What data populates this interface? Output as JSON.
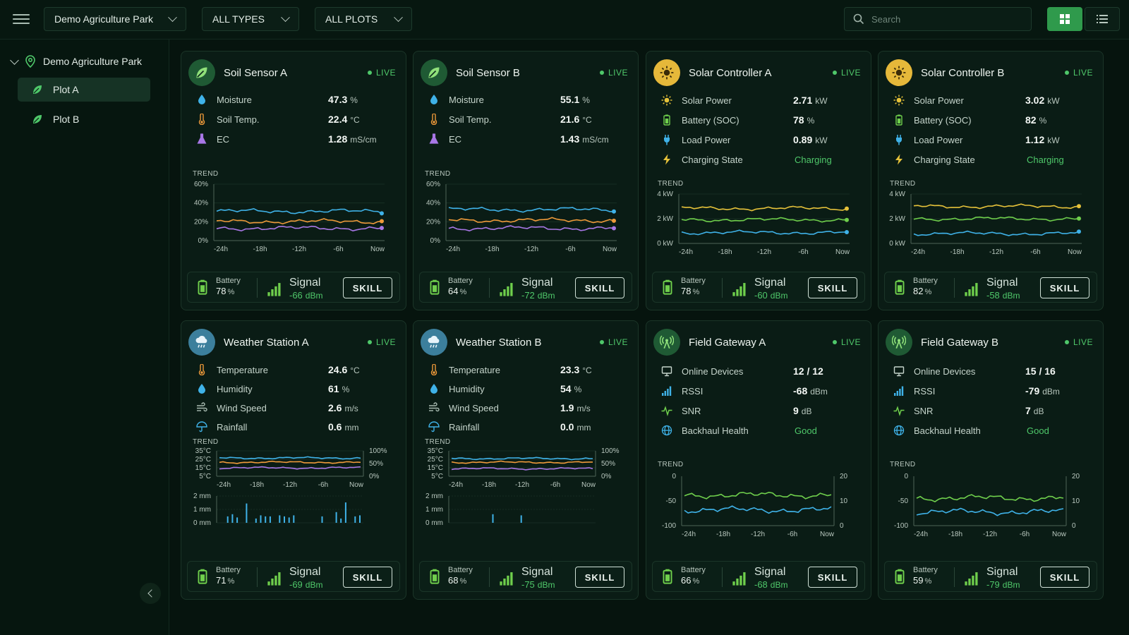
{
  "header": {
    "park_select": "Demo Agriculture Park",
    "type_select": "ALL TYPES",
    "plot_select": "ALL PLOTS",
    "search_placeholder": "Search"
  },
  "sidebar": {
    "root": "Demo Agriculture Park",
    "items": [
      {
        "label": "Plot A",
        "active": true
      },
      {
        "label": "Plot B",
        "active": false
      }
    ]
  },
  "common": {
    "live": "LIVE",
    "trend": "TREND",
    "battery": "Battery",
    "signal": "Signal",
    "skill": "SKILL",
    "time_ticks": [
      "-24h",
      "-18h",
      "-12h",
      "-6h",
      "Now"
    ]
  },
  "colors": {
    "blue": "#3fb2e8",
    "orange": "#ef9a3a",
    "purple": "#a877e6",
    "yellow": "#e6c23a",
    "green": "#6fcf4c",
    "accent": "#2f9a4c",
    "good": "#4fc86a"
  },
  "cards": [
    {
      "kind": "soil",
      "icon": "leaf-icon",
      "title": "Soil Sensor A",
      "metrics": [
        {
          "label": "Moisture",
          "icon": "droplet-icon",
          "value": "47.3",
          "unit": "%"
        },
        {
          "label": "Soil Temp.",
          "icon": "thermometer-icon",
          "value": "22.4",
          "unit": "°C"
        },
        {
          "label": "EC",
          "icon": "flask-icon",
          "value": "1.28",
          "unit": "mS/cm"
        }
      ],
      "y_ticks": [
        "60%",
        "40%",
        "20%",
        "0%"
      ],
      "series": [
        {
          "name": "Moisture",
          "color": "#3fb2e8",
          "level": 0.52
        },
        {
          "name": "Soil Temp.",
          "color": "#ef9a3a",
          "level": 0.34
        },
        {
          "name": "EC",
          "color": "#a877e6",
          "level": 0.22
        }
      ],
      "battery": "78",
      "signal": "-66"
    },
    {
      "kind": "soil",
      "icon": "leaf-icon",
      "title": "Soil Sensor B",
      "metrics": [
        {
          "label": "Moisture",
          "icon": "droplet-icon",
          "value": "55.1",
          "unit": "%"
        },
        {
          "label": "Soil Temp.",
          "icon": "thermometer-icon",
          "value": "21.6",
          "unit": "°C"
        },
        {
          "label": "EC",
          "icon": "flask-icon",
          "value": "1.43",
          "unit": "mS/cm"
        }
      ],
      "y_ticks": [
        "60%",
        "40%",
        "20%",
        "0%"
      ],
      "series": [
        {
          "name": "Moisture",
          "color": "#3fb2e8",
          "level": 0.55
        },
        {
          "name": "Soil Temp.",
          "color": "#ef9a3a",
          "level": 0.36
        },
        {
          "name": "EC",
          "color": "#a877e6",
          "level": 0.22
        }
      ],
      "battery": "64",
      "signal": "-72"
    },
    {
      "kind": "solar",
      "icon": "sun-icon",
      "title": "Solar Controller A",
      "metrics": [
        {
          "label": "Solar Power",
          "icon": "sun-icon",
          "value": "2.71",
          "unit": "kW"
        },
        {
          "label": "Battery (SOC)",
          "icon": "battery-icon",
          "value": "78",
          "unit": "%"
        },
        {
          "label": "Load Power",
          "icon": "plug-icon",
          "value": "0.89",
          "unit": "kW"
        },
        {
          "label": "Charging State",
          "icon": "bolt-icon",
          "value": "Charging",
          "unit": "",
          "good": true
        }
      ],
      "y_ticks": [
        "4 kW",
        "2 kW",
        "0 kW"
      ],
      "series": [
        {
          "name": "Solar Power",
          "color": "#e6c23a",
          "level": 0.71
        },
        {
          "name": "Battery (SOC)",
          "color": "#6fcf4c",
          "level": 0.48
        },
        {
          "name": "Load Power",
          "color": "#3fb2e8",
          "level": 0.22
        }
      ],
      "battery": "78",
      "signal": "-60"
    },
    {
      "kind": "solar",
      "icon": "sun-icon",
      "title": "Solar Controller B",
      "metrics": [
        {
          "label": "Solar Power",
          "icon": "sun-icon",
          "value": "3.02",
          "unit": "kW"
        },
        {
          "label": "Battery (SOC)",
          "icon": "battery-icon",
          "value": "82",
          "unit": "%"
        },
        {
          "label": "Load Power",
          "icon": "plug-icon",
          "value": "1.12",
          "unit": "kW"
        },
        {
          "label": "Charging State",
          "icon": "bolt-icon",
          "value": "Charging",
          "unit": "",
          "good": true
        }
      ],
      "y_ticks": [
        "4 kW",
        "2 kW",
        "0 kW"
      ],
      "series": [
        {
          "name": "Solar Power",
          "color": "#e6c23a",
          "level": 0.75
        },
        {
          "name": "Battery (SOC)",
          "color": "#6fcf4c",
          "level": 0.5
        },
        {
          "name": "Load Power",
          "color": "#3fb2e8",
          "level": 0.2
        }
      ],
      "battery": "82",
      "signal": "-58"
    },
    {
      "kind": "weather",
      "icon": "cloud-rain-icon",
      "title": "Weather Station A",
      "metrics": [
        {
          "label": "Temperature",
          "icon": "thermometer-icon",
          "value": "24.6",
          "unit": "°C"
        },
        {
          "label": "Humidity",
          "icon": "droplet-icon",
          "value": "61",
          "unit": "%"
        },
        {
          "label": "Wind Speed",
          "icon": "wind-icon",
          "value": "2.6",
          "unit": "m/s"
        },
        {
          "label": "Rainfall",
          "icon": "umbrella-icon",
          "value": "0.6",
          "unit": "mm"
        }
      ],
      "y_ticks": [
        "35°C",
        "25°C",
        "15°C",
        "5°C"
      ],
      "y2_ticks": [
        "100%",
        "50%",
        "0%"
      ],
      "rain_ticks": [
        "2 mm",
        "1 mm",
        "0 mm"
      ],
      "series": [
        {
          "name": "Humidity",
          "color": "#3fb2e8",
          "level": 0.72
        },
        {
          "name": "Temperature",
          "color": "#ef9a3a",
          "level": 0.55
        },
        {
          "name": "Wind Speed",
          "color": "#a877e6",
          "level": 0.33
        }
      ],
      "rain": [
        0,
        0.3,
        0.4,
        0.25,
        0,
        0.9,
        0,
        0.2,
        0.35,
        0.3,
        0.3,
        0,
        0.35,
        0.3,
        0.25,
        0.35,
        0,
        0,
        0,
        0,
        0,
        0.3,
        0,
        0,
        0.5,
        0.2,
        0.95,
        0,
        0.3,
        0.35
      ],
      "battery": "71",
      "signal": "-69"
    },
    {
      "kind": "weather",
      "icon": "cloud-rain-icon",
      "title": "Weather Station B",
      "metrics": [
        {
          "label": "Temperature",
          "icon": "thermometer-icon",
          "value": "23.3",
          "unit": "°C"
        },
        {
          "label": "Humidity",
          "icon": "droplet-icon",
          "value": "54",
          "unit": "%"
        },
        {
          "label": "Wind Speed",
          "icon": "wind-icon",
          "value": "1.9",
          "unit": "m/s"
        },
        {
          "label": "Rainfall",
          "icon": "umbrella-icon",
          "value": "0.0",
          "unit": "mm"
        }
      ],
      "y_ticks": [
        "35°C",
        "25°C",
        "15°C",
        "5°C"
      ],
      "y2_ticks": [
        "100%",
        "50%",
        "0%"
      ],
      "rain_ticks": [
        "2 mm",
        "1 mm",
        "0 mm"
      ],
      "series": [
        {
          "name": "Humidity",
          "color": "#3fb2e8",
          "level": 0.7
        },
        {
          "name": "Temperature",
          "color": "#ef9a3a",
          "level": 0.55
        },
        {
          "name": "Wind Speed",
          "color": "#a877e6",
          "level": 0.3
        }
      ],
      "rain": [
        0,
        0,
        0,
        0,
        0,
        0,
        0,
        0,
        0.4,
        0,
        0,
        0,
        0,
        0,
        0.35,
        0,
        0,
        0,
        0,
        0,
        0,
        0,
        0,
        0,
        0,
        0,
        0,
        0,
        0,
        0
      ],
      "battery": "68",
      "signal": "-75"
    },
    {
      "kind": "gateway",
      "icon": "antenna-icon",
      "title": "Field Gateway A",
      "metrics": [
        {
          "label": "Online Devices",
          "icon": "monitor-icon",
          "value": "12 / 12",
          "unit": ""
        },
        {
          "label": "RSSI",
          "icon": "signal-bars-icon",
          "value": "-68",
          "unit": "dBm"
        },
        {
          "label": "SNR",
          "icon": "pulse-icon",
          "value": "9",
          "unit": "dB"
        },
        {
          "label": "Backhaul Health",
          "icon": "globe-icon",
          "value": "Good",
          "unit": "",
          "good": true
        }
      ],
      "y_ticks": [
        "0",
        "-50",
        "-100"
      ],
      "y2_ticks": [
        "20",
        "10",
        "0"
      ],
      "series": [
        {
          "name": "SNR",
          "color": "#6fcf4c",
          "level": 0.62
        },
        {
          "name": "RSSI",
          "color": "#3fb2e8",
          "level": 0.32
        }
      ],
      "battery": "66",
      "signal": "-68"
    },
    {
      "kind": "gateway",
      "icon": "antenna-icon",
      "title": "Field Gateway B",
      "metrics": [
        {
          "label": "Online Devices",
          "icon": "monitor-icon",
          "value": "15 / 16",
          "unit": ""
        },
        {
          "label": "RSSI",
          "icon": "signal-bars-icon",
          "value": "-79",
          "unit": "dBm"
        },
        {
          "label": "SNR",
          "icon": "pulse-icon",
          "value": "7",
          "unit": "dB"
        },
        {
          "label": "Backhaul Health",
          "icon": "globe-icon",
          "value": "Good",
          "unit": "",
          "good": true
        }
      ],
      "y_ticks": [
        "0",
        "-50",
        "-100"
      ],
      "y2_ticks": [
        "20",
        "10",
        "0"
      ],
      "series": [
        {
          "name": "SNR",
          "color": "#6fcf4c",
          "level": 0.56
        },
        {
          "name": "RSSI",
          "color": "#3fb2e8",
          "level": 0.28
        }
      ],
      "battery": "59",
      "signal": "-79"
    }
  ]
}
